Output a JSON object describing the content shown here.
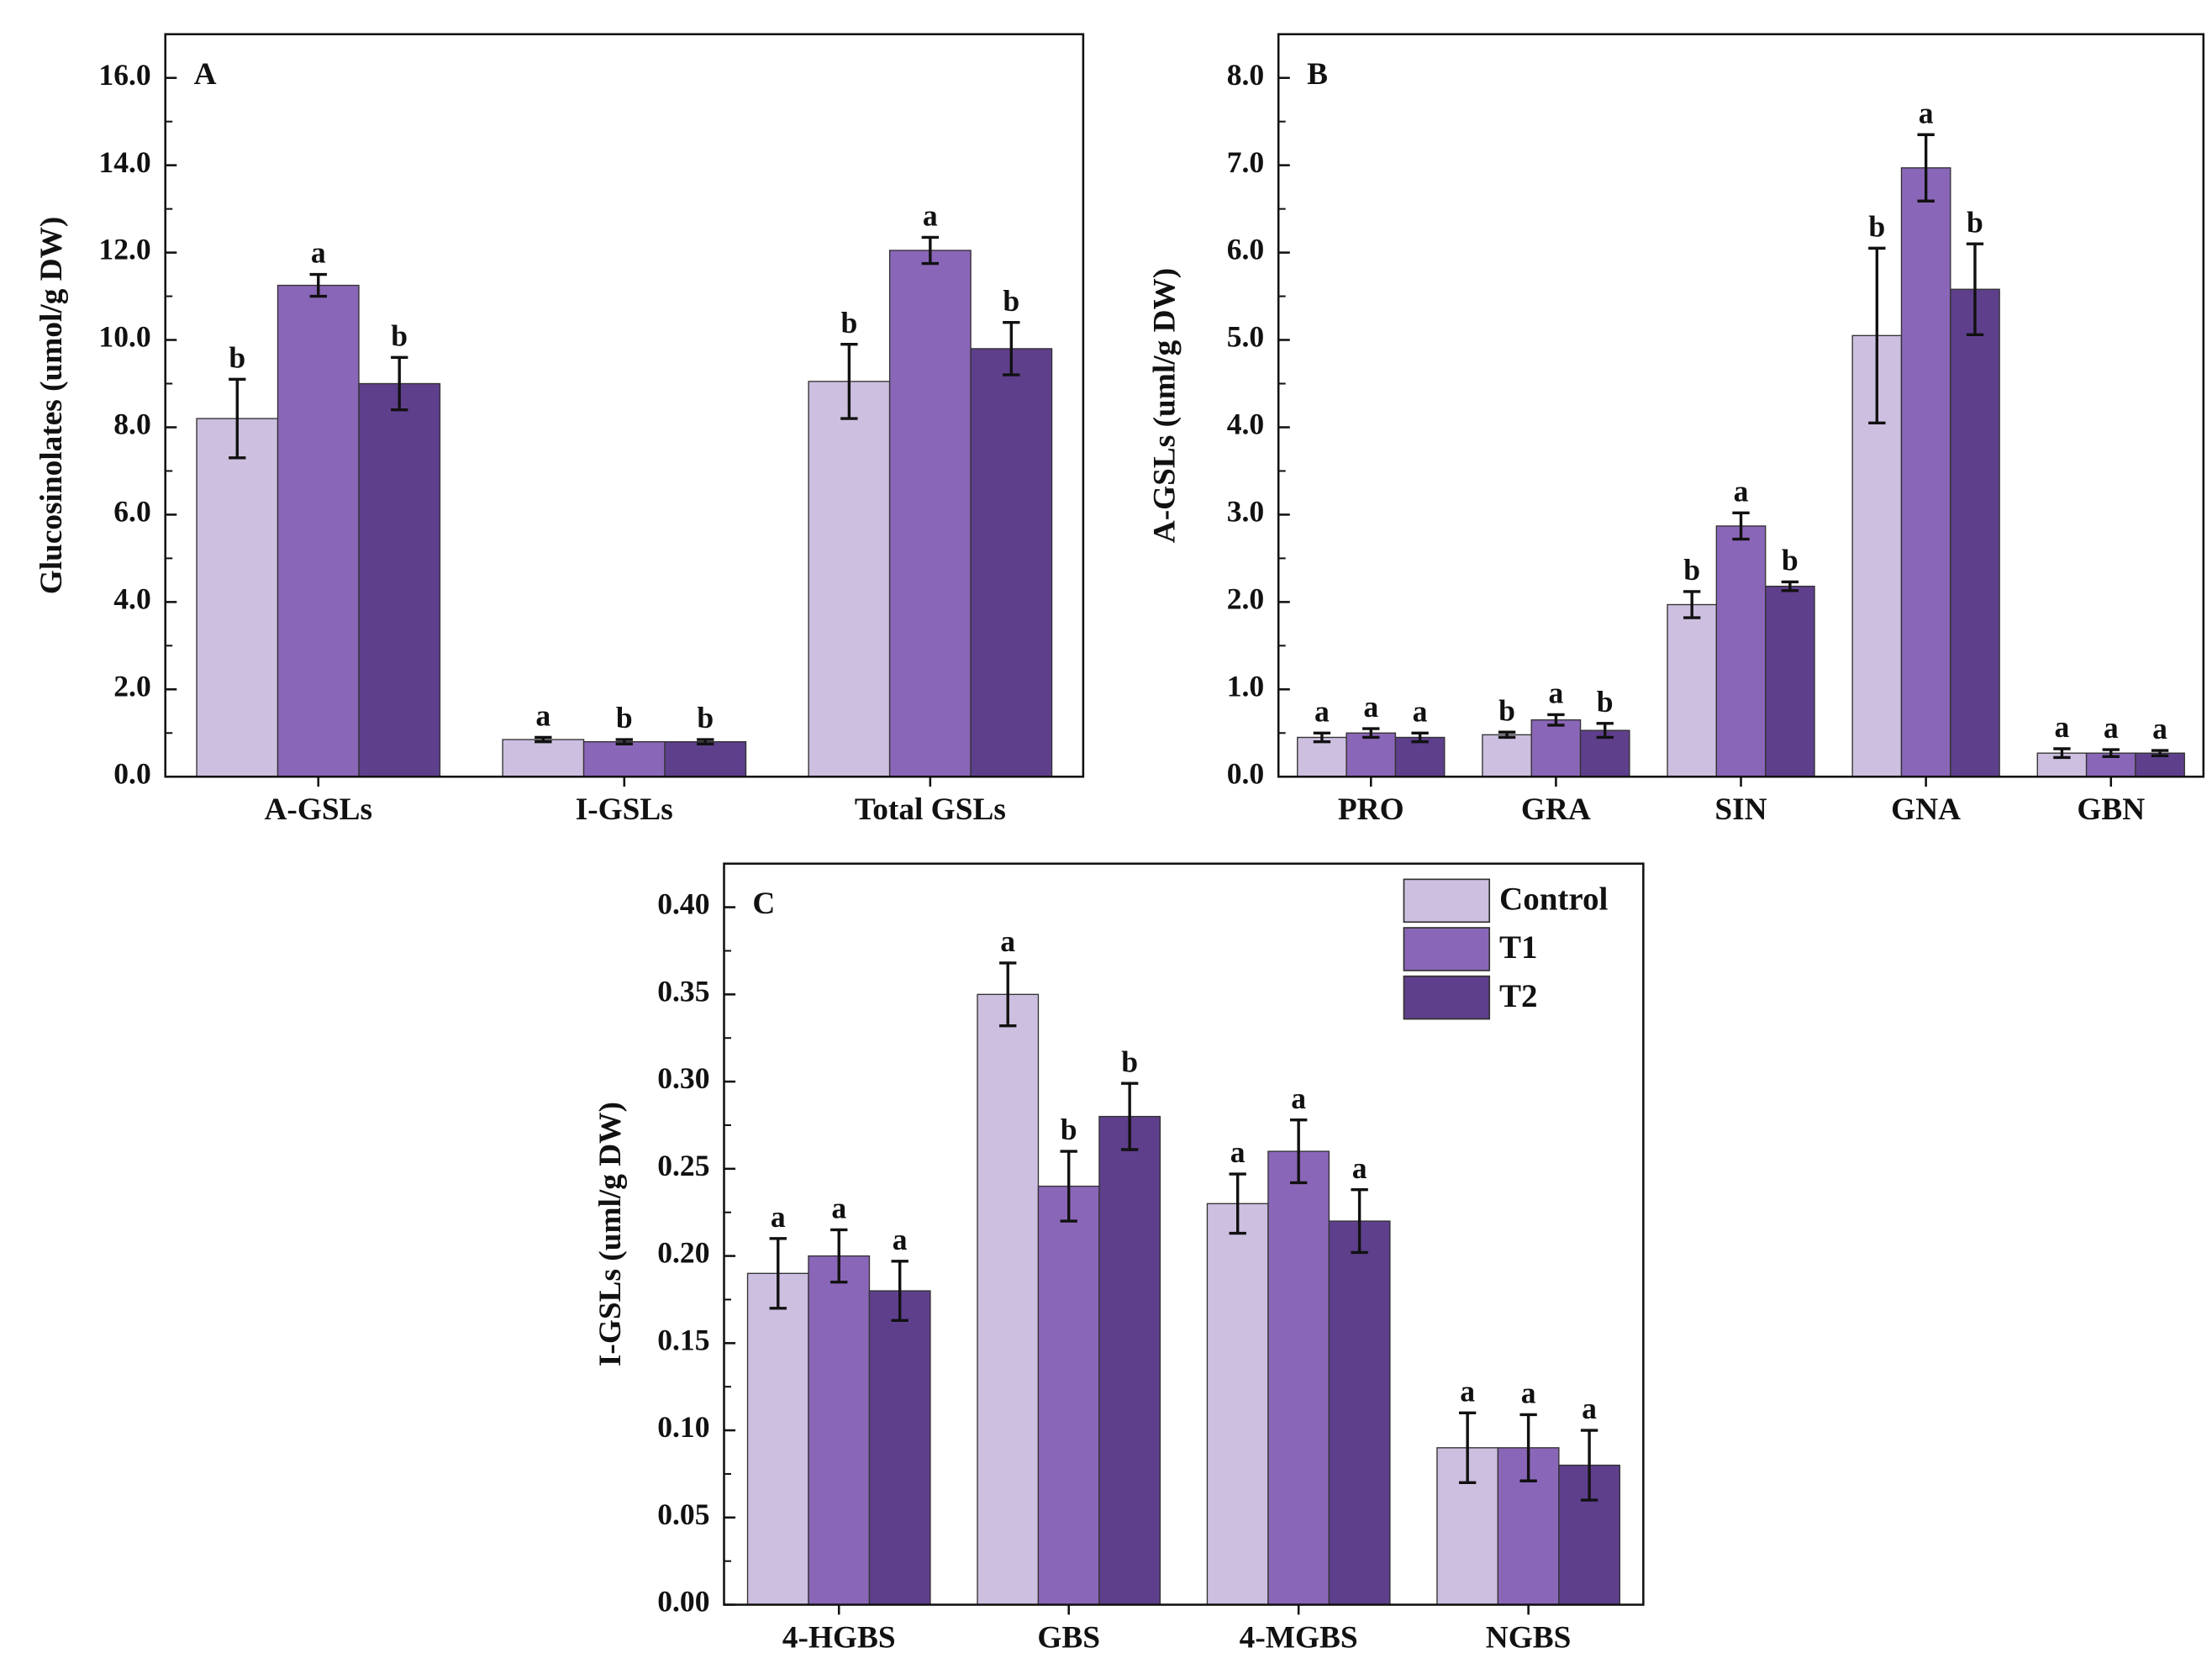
{
  "chart_data": [
    {
      "type": "bar",
      "panel": "A",
      "y_label": "Glucosinolates (umol/g DW)",
      "categories": [
        "A-GSLs",
        "I-GSLs",
        "Total GSLs"
      ],
      "series": [
        {
          "name": "Control",
          "color": "#cdbfe0",
          "values": [
            8.2,
            0.85,
            9.05
          ],
          "errors": [
            0.9,
            0.05,
            0.85
          ],
          "letters": [
            "b",
            "a",
            "b"
          ]
        },
        {
          "name": "T1",
          "color": "#8a66b8",
          "values": [
            11.25,
            0.8,
            12.05
          ],
          "errors": [
            0.25,
            0.05,
            0.3
          ],
          "letters": [
            "a",
            "b",
            "a"
          ]
        },
        {
          "name": "T2",
          "color": "#5e3f8c",
          "values": [
            9.0,
            0.8,
            9.8
          ],
          "errors": [
            0.6,
            0.05,
            0.6
          ],
          "letters": [
            "b",
            "b",
            "b"
          ]
        }
      ],
      "ylim": [
        0,
        17
      ],
      "yticks": [
        {
          "value": 0,
          "label": "0.0"
        },
        {
          "value": 2,
          "label": "2.0"
        },
        {
          "value": 4,
          "label": "4.0"
        },
        {
          "value": 6,
          "label": "6.0"
        },
        {
          "value": 8,
          "label": "8.0"
        },
        {
          "value": 10,
          "label": "10.0"
        },
        {
          "value": 12,
          "label": "12.0"
        },
        {
          "value": 14,
          "label": "14.0"
        },
        {
          "value": 16,
          "label": "16.0"
        }
      ]
    },
    {
      "type": "bar",
      "panel": "B",
      "y_label": "A-GSLs  (uml/g DW)",
      "categories": [
        "PRO",
        "GRA",
        "SIN",
        "GNA",
        "GBN"
      ],
      "series": [
        {
          "name": "Control",
          "color": "#cdbfe0",
          "values": [
            0.45,
            0.48,
            1.97,
            5.05,
            0.27
          ],
          "errors": [
            0.05,
            0.03,
            0.15,
            1.0,
            0.05
          ],
          "letters": [
            "a",
            "b",
            "b",
            "b",
            "a"
          ]
        },
        {
          "name": "T1",
          "color": "#8a66b8",
          "values": [
            0.5,
            0.65,
            2.87,
            6.97,
            0.27
          ],
          "errors": [
            0.05,
            0.06,
            0.15,
            0.38,
            0.04
          ],
          "letters": [
            "a",
            "a",
            "a",
            "a",
            "a"
          ]
        },
        {
          "name": "T2",
          "color": "#5e3f8c",
          "values": [
            0.45,
            0.53,
            2.18,
            5.58,
            0.27
          ],
          "errors": [
            0.05,
            0.08,
            0.05,
            0.52,
            0.03
          ],
          "letters": [
            "a",
            "b",
            "b",
            "b",
            "a"
          ]
        }
      ],
      "ylim": [
        0,
        8.5
      ],
      "yticks": [
        {
          "value": 0,
          "label": "0.0"
        },
        {
          "value": 1,
          "label": "1.0"
        },
        {
          "value": 2,
          "label": "2.0"
        },
        {
          "value": 3,
          "label": "3.0"
        },
        {
          "value": 4,
          "label": "4.0"
        },
        {
          "value": 5,
          "label": "5.0"
        },
        {
          "value": 6,
          "label": "6.0"
        },
        {
          "value": 7,
          "label": "7.0"
        },
        {
          "value": 8,
          "label": "8.0"
        }
      ]
    },
    {
      "type": "bar",
      "panel": "C",
      "y_label": "I-GSLs  (uml/g DW)",
      "legend": "upper right",
      "categories": [
        "4-HGBS",
        "GBS",
        "4-MGBS",
        "NGBS"
      ],
      "series": [
        {
          "name": "Control",
          "color": "#cdbfe0",
          "values": [
            0.19,
            0.35,
            0.23,
            0.09
          ],
          "errors": [
            0.02,
            0.018,
            0.017,
            0.02
          ],
          "letters": [
            "a",
            "a",
            "a",
            "a"
          ]
        },
        {
          "name": "T1",
          "color": "#8a66b8",
          "values": [
            0.2,
            0.24,
            0.26,
            0.09
          ],
          "errors": [
            0.015,
            0.02,
            0.018,
            0.019
          ],
          "letters": [
            "a",
            "b",
            "a",
            "a"
          ]
        },
        {
          "name": "T2",
          "color": "#5e3f8c",
          "values": [
            0.18,
            0.28,
            0.22,
            0.08
          ],
          "errors": [
            0.017,
            0.019,
            0.018,
            0.02
          ],
          "letters": [
            "a",
            "b",
            "a",
            "a"
          ]
        }
      ],
      "ylim": [
        0,
        0.425
      ],
      "yticks": [
        {
          "value": 0,
          "label": "0.00"
        },
        {
          "value": 0.05,
          "label": "0.05"
        },
        {
          "value": 0.1,
          "label": "0.10"
        },
        {
          "value": 0.15,
          "label": "0.15"
        },
        {
          "value": 0.2,
          "label": "0.20"
        },
        {
          "value": 0.25,
          "label": "0.25"
        },
        {
          "value": 0.3,
          "label": "0.30"
        },
        {
          "value": 0.35,
          "label": "0.35"
        },
        {
          "value": 0.4,
          "label": "0.40"
        }
      ]
    }
  ]
}
